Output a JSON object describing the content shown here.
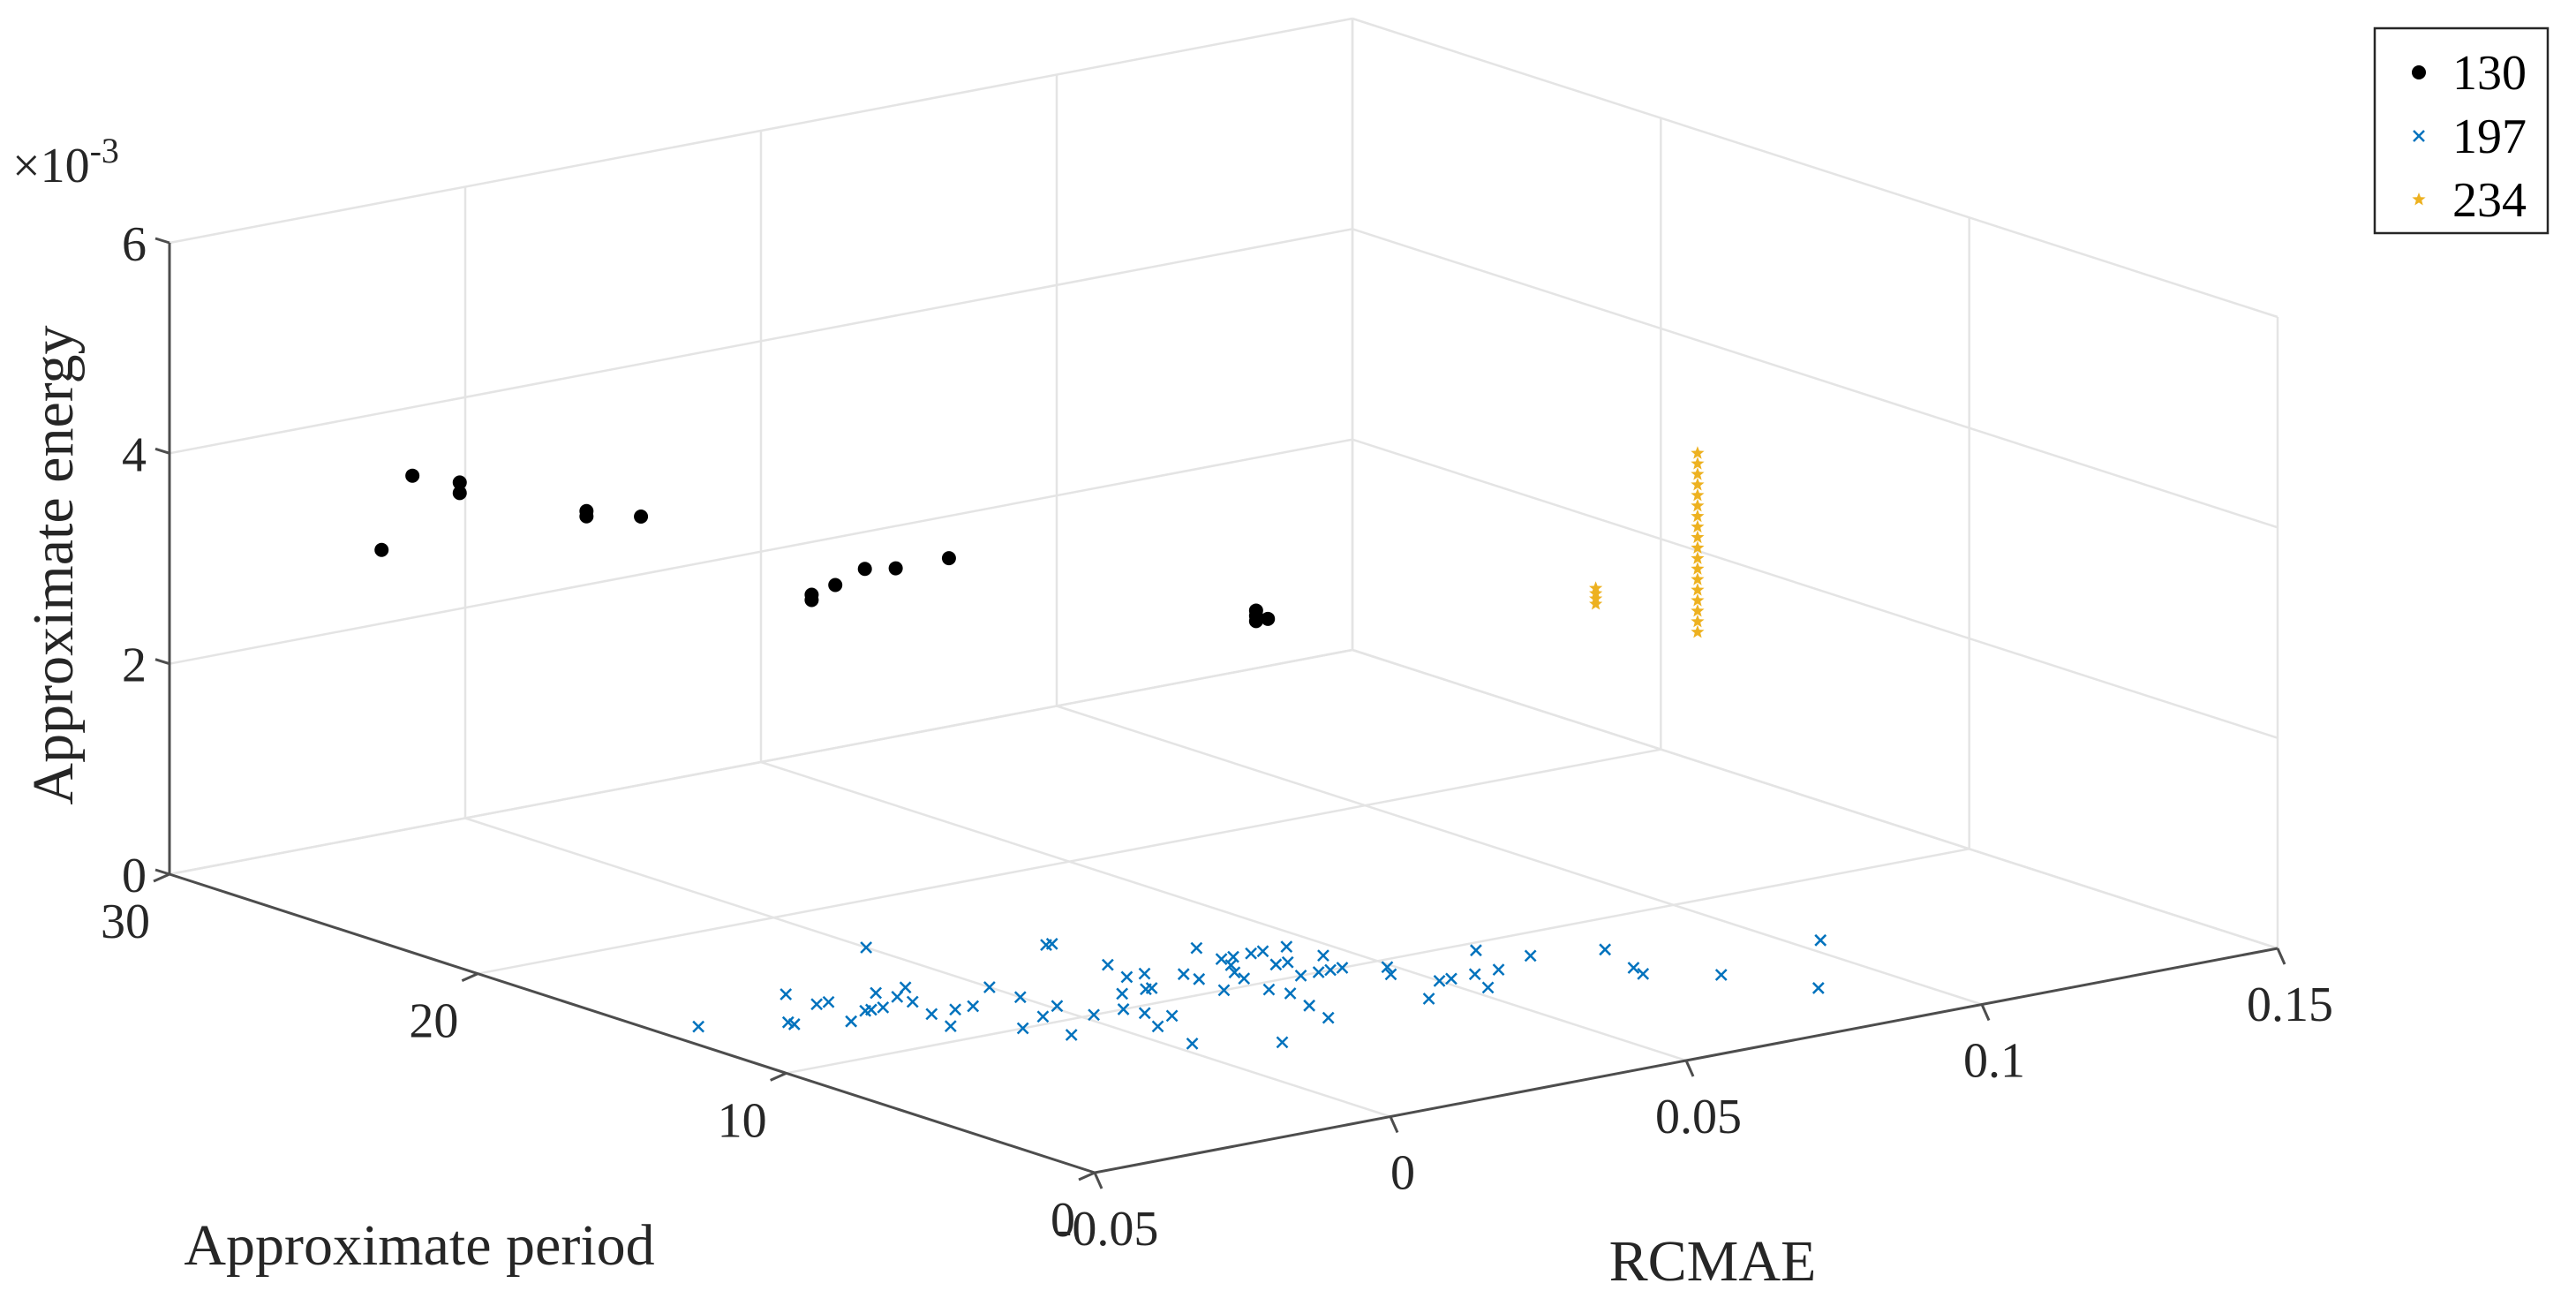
{
  "chart_data": {
    "type": "scatter3d",
    "title": "",
    "xlabel": "RCMAE",
    "ylabel": "Approximate period",
    "zlabel": "Approximate energy",
    "xlim": [
      -0.05,
      0.15
    ],
    "ylim": [
      0,
      30
    ],
    "zlim": [
      0,
      6
    ],
    "x_ticks": [
      -0.05,
      0,
      0.05,
      0.1,
      0.15
    ],
    "x_tick_labels": [
      "-0.05",
      "0",
      "0.05",
      "0.1",
      "0.15"
    ],
    "y_ticks": [
      0,
      10,
      20,
      30
    ],
    "y_tick_labels": [
      "0",
      "10",
      "20",
      "30"
    ],
    "z_ticks": [
      0,
      2,
      4,
      6
    ],
    "z_tick_labels": [
      "0",
      "2",
      "4",
      "6"
    ],
    "z_exponent_base": "×10",
    "z_exponent_power": "-3",
    "grid": true,
    "legend_position": "top-right",
    "series": [
      {
        "name": "130",
        "marker": "dot",
        "color": "#000000",
        "points": [
          [
            -0.035,
            26,
            3.3
          ],
          [
            -0.035,
            25,
            4.1
          ],
          [
            -0.027,
            25,
            3.95
          ],
          [
            -0.027,
            25,
            3.85
          ],
          [
            -0.016,
            23,
            3.7
          ],
          [
            -0.016,
            23,
            3.75
          ],
          [
            -0.012,
            22,
            3.75
          ],
          [
            -0.004,
            18,
            3.25
          ],
          [
            -0.004,
            18,
            3.3
          ],
          [
            0.0,
            18,
            3.35
          ],
          [
            0.005,
            18,
            3.45
          ],
          [
            0.005,
            17,
            3.55
          ],
          [
            0.014,
            17,
            3.55
          ],
          [
            0.019,
            8,
            3.75
          ],
          [
            0.019,
            8,
            3.85
          ],
          [
            0.019,
            8,
            3.8
          ],
          [
            0.021,
            8,
            3.75
          ]
        ]
      },
      {
        "name": "197",
        "marker": "x",
        "color": "#0072BD",
        "points": [
          [
            -0.044,
            14,
            0
          ],
          [
            -0.033,
            13,
            0
          ],
          [
            -0.033,
            13.2,
            0
          ],
          [
            -0.026,
            12.5,
            0
          ],
          [
            -0.024,
            14,
            0
          ],
          [
            -0.024,
            15,
            0
          ],
          [
            -0.022,
            14,
            0
          ],
          [
            -0.021,
            13,
            0
          ],
          [
            -0.02,
            13,
            0
          ],
          [
            -0.018,
            13,
            0
          ],
          [
            -0.017,
            11,
            0
          ],
          [
            -0.015,
            12,
            0
          ],
          [
            -0.014,
            14,
            0
          ],
          [
            -0.013,
            13,
            0
          ],
          [
            -0.013,
            13.5,
            0
          ],
          [
            -0.011,
            12,
            0
          ],
          [
            -0.01,
            10,
            0
          ],
          [
            -0.009,
            14,
            0
          ],
          [
            -0.008,
            12,
            0
          ],
          [
            -0.007,
            9,
            0
          ],
          [
            -0.004,
            10.5,
            0
          ],
          [
            0.0,
            12,
            0
          ],
          [
            0.0,
            13,
            0
          ],
          [
            0.0,
            17,
            0
          ],
          [
            0.001,
            11,
            0
          ],
          [
            0.002,
            10,
            0
          ],
          [
            0.003,
            7,
            0
          ],
          [
            0.005,
            8.5,
            0
          ],
          [
            0.007,
            10,
            0
          ],
          [
            0.008,
            9.5,
            0
          ],
          [
            0.01,
            9,
            0
          ],
          [
            0.012,
            11,
            0
          ],
          [
            0.013,
            6,
            0
          ],
          [
            0.016,
            11,
            0
          ],
          [
            0.017,
            11,
            0
          ],
          [
            0.018,
            12,
            0
          ],
          [
            0.02,
            13,
            0
          ],
          [
            0.02,
            15,
            0
          ],
          [
            0.021,
            12,
            0
          ],
          [
            0.021,
            15,
            0
          ],
          [
            0.024,
            10,
            0
          ],
          [
            0.025,
            11,
            0
          ],
          [
            0.025,
            11.5,
            0
          ],
          [
            0.026,
            7,
            0
          ],
          [
            0.028,
            8,
            0
          ],
          [
            0.029,
            9.5,
            0
          ],
          [
            0.03,
            9,
            0
          ],
          [
            0.03,
            10.5,
            0
          ],
          [
            0.031,
            11,
            0
          ],
          [
            0.033,
            11.5,
            0
          ],
          [
            0.034,
            12,
            0
          ],
          [
            0.035,
            13,
            0
          ],
          [
            0.036,
            12,
            0
          ],
          [
            0.037,
            10,
            0
          ],
          [
            0.038,
            11,
            0
          ],
          [
            0.039,
            12,
            0
          ],
          [
            0.04,
            10,
            0
          ],
          [
            0.04,
            11,
            0
          ],
          [
            0.041,
            12,
            0
          ],
          [
            0.042,
            10,
            0
          ],
          [
            0.043,
            7,
            0
          ],
          [
            0.044,
            10,
            0
          ],
          [
            0.045,
            12,
            0
          ],
          [
            0.046,
            11,
            0
          ],
          [
            0.047,
            9,
            0
          ],
          [
            0.049,
            9.5,
            0
          ],
          [
            0.05,
            8,
            0
          ],
          [
            0.052,
            8,
            0
          ],
          [
            0.053,
            7,
            0
          ],
          [
            0.056,
            8,
            0
          ],
          [
            0.06,
            8,
            0
          ],
          [
            0.064,
            9.5,
            0
          ],
          [
            0.068,
            8.5,
            0
          ],
          [
            0.074,
            6,
            0
          ],
          [
            0.075,
            6.5,
            0
          ],
          [
            0.078,
            8,
            0
          ],
          [
            0.082,
            5,
            0
          ],
          [
            0.088,
            3,
            0
          ],
          [
            0.104,
            6,
            0
          ]
        ]
      },
      {
        "name": "234",
        "marker": "star",
        "color": "#EDB120",
        "points": [
          [
            0.066,
            6,
            3.6
          ],
          [
            0.066,
            6,
            3.65
          ],
          [
            0.066,
            6,
            3.7
          ],
          [
            0.066,
            6,
            3.75
          ],
          [
            0.078,
            5,
            3.3
          ],
          [
            0.078,
            5,
            3.4
          ],
          [
            0.078,
            5,
            3.5
          ],
          [
            0.078,
            5,
            3.6
          ],
          [
            0.078,
            5,
            3.7
          ],
          [
            0.078,
            5,
            3.8
          ],
          [
            0.078,
            5,
            3.9
          ],
          [
            0.078,
            5,
            4.0
          ],
          [
            0.078,
            5,
            4.1
          ],
          [
            0.078,
            5,
            4.2
          ],
          [
            0.078,
            5,
            4.3
          ],
          [
            0.078,
            5,
            4.4
          ],
          [
            0.078,
            5,
            4.5
          ],
          [
            0.078,
            5,
            4.6
          ],
          [
            0.078,
            5,
            4.7
          ],
          [
            0.078,
            5,
            4.8
          ],
          [
            0.078,
            5,
            4.9
          ],
          [
            0.078,
            5,
            5.0
          ]
        ]
      }
    ]
  }
}
